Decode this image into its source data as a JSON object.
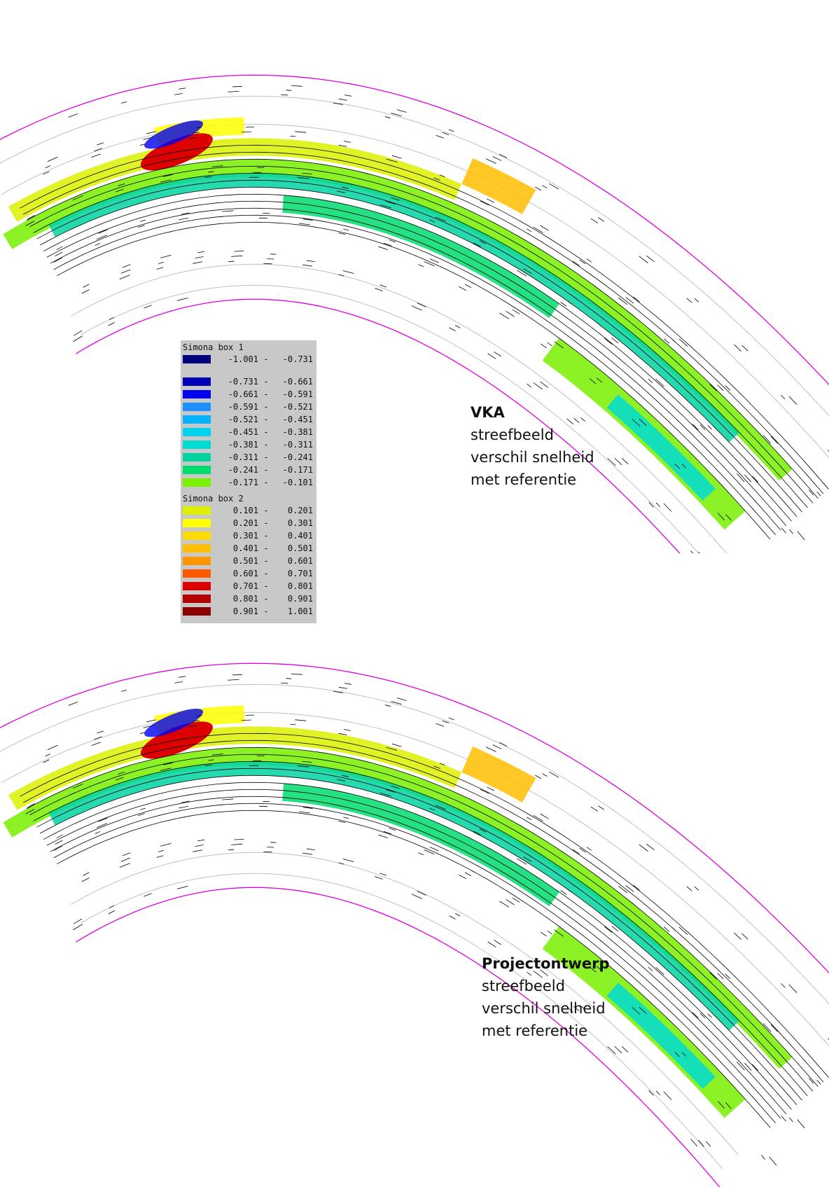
{
  "panels": [
    {
      "id": "top",
      "title": "VKA",
      "lines": [
        "streefbeeld",
        "verschil snelheid",
        "met referentie"
      ]
    },
    {
      "id": "bottom",
      "title": "Projectontwerp",
      "lines": [
        "streefbeeld",
        "verschil snelheid",
        "met referentie"
      ]
    }
  ],
  "legend": {
    "box1_title": "Simona box 1",
    "box2_title": "Simona box 2",
    "box1_top": {
      "lo": "-1.001",
      "hi": "-0.731",
      "color": "#00007f"
    },
    "box1": [
      {
        "lo": "-0.731",
        "hi": "-0.661",
        "color": "#0000b4"
      },
      {
        "lo": "-0.661",
        "hi": "-0.591",
        "color": "#0000f0"
      },
      {
        "lo": "-0.591",
        "hi": "-0.521",
        "color": "#1e90ff"
      },
      {
        "lo": "-0.521",
        "hi": "-0.451",
        "color": "#00b4ff"
      },
      {
        "lo": "-0.451",
        "hi": "-0.381",
        "color": "#00d2f0"
      },
      {
        "lo": "-0.381",
        "hi": "-0.311",
        "color": "#00dcd2"
      },
      {
        "lo": "-0.311",
        "hi": "-0.241",
        "color": "#00d2a0"
      },
      {
        "lo": "-0.241",
        "hi": "-0.171",
        "color": "#00dc6e"
      },
      {
        "lo": "-0.171",
        "hi": "-0.101",
        "color": "#78f000"
      }
    ],
    "box2": [
      {
        "lo": "0.101",
        "hi": "0.201",
        "color": "#dcf000"
      },
      {
        "lo": "0.201",
        "hi": "0.301",
        "color": "#ffff00"
      },
      {
        "lo": "0.301",
        "hi": "0.401",
        "color": "#ffdc00"
      },
      {
        "lo": "0.401",
        "hi": "0.501",
        "color": "#ffbe00"
      },
      {
        "lo": "0.501",
        "hi": "0.601",
        "color": "#ff9600"
      },
      {
        "lo": "0.601",
        "hi": "0.701",
        "color": "#ff5a00"
      },
      {
        "lo": "0.701",
        "hi": "0.801",
        "color": "#dc0000"
      },
      {
        "lo": "0.801",
        "hi": "0.901",
        "color": "#b40000"
      },
      {
        "lo": "0.901",
        "hi": "1.001",
        "color": "#8c0000"
      }
    ]
  },
  "colors": {
    "boundary": "#e000e0",
    "gridline": "#c0c0c0",
    "vector": "#000000"
  }
}
